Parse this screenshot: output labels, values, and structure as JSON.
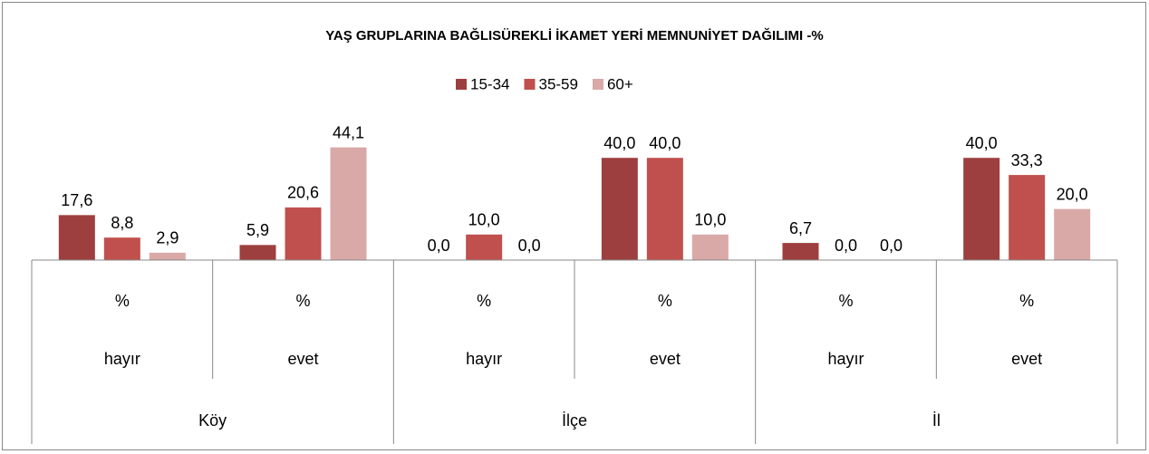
{
  "chart_data": {
    "type": "bar",
    "title": "YAŞ GRUPLARINA BAĞLISÜREKLİ İKAMET YERİ MEMNUNİYET DAĞILIMI -%",
    "categories": [
      "%",
      "%",
      "%",
      "%",
      "%",
      "%"
    ],
    "subcategories": [
      "hayır",
      "evet",
      "hayır",
      "evet",
      "hayır",
      "evet"
    ],
    "groups": [
      "Köy",
      "İlçe",
      "İl"
    ],
    "series": [
      {
        "name": "15-34",
        "color": "#9e3f3f",
        "values": [
          17.6,
          5.9,
          0.0,
          40.0,
          6.7,
          40.0
        ],
        "value_labels": [
          "17,6",
          "5,9",
          "0,0",
          "40,0",
          "6,7",
          "40,0"
        ]
      },
      {
        "name": "35-59",
        "color": "#c0504d",
        "values": [
          8.8,
          20.6,
          10.0,
          40.0,
          0.0,
          33.3
        ],
        "value_labels": [
          "8,8",
          "20,6",
          "10,0",
          "40,0",
          "0,0",
          "33,3"
        ]
      },
      {
        "name": "60+",
        "color": "#d9a9a8",
        "values": [
          2.9,
          44.1,
          0.0,
          10.0,
          0.0,
          20.0
        ],
        "value_labels": [
          "2,9",
          "44,1",
          "0,0",
          "10,0",
          "0,0",
          "20,0"
        ]
      }
    ],
    "ylim": [
      0,
      50
    ],
    "legend": "top"
  }
}
